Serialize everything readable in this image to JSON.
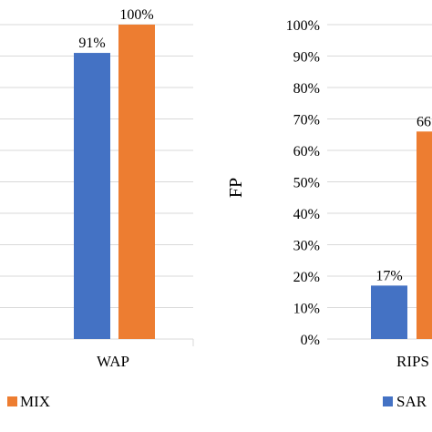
{
  "chart_data": [
    {
      "type": "bar",
      "categories": [
        "WAP"
      ],
      "series": [
        {
          "name": "",
          "values": [
            91
          ],
          "data_labels": [
            "91%"
          ]
        },
        {
          "name": "MIX",
          "values": [
            100
          ],
          "data_labels": [
            "100%"
          ]
        }
      ],
      "ylim": [
        0,
        100
      ],
      "ylabel": "",
      "grid": true,
      "legend": "bottom"
    },
    {
      "type": "bar",
      "categories": [
        "RIPS"
      ],
      "series": [
        {
          "name": "SAR",
          "values": [
            17
          ],
          "data_labels": [
            "17%"
          ]
        },
        {
          "name": "",
          "values": [
            66
          ],
          "data_labels": [
            "66"
          ]
        }
      ],
      "ylim": [
        0,
        100
      ],
      "ylabel": "FP",
      "yticks": [
        "0%",
        "10%",
        "20%",
        "30%",
        "40%",
        "50%",
        "60%",
        "70%",
        "80%",
        "90%",
        "100%"
      ],
      "grid": true,
      "legend": "bottom"
    }
  ],
  "colors": {
    "series_a": "#4472C4",
    "series_b": "#ED7D31",
    "grid": "#d9d9d9"
  }
}
